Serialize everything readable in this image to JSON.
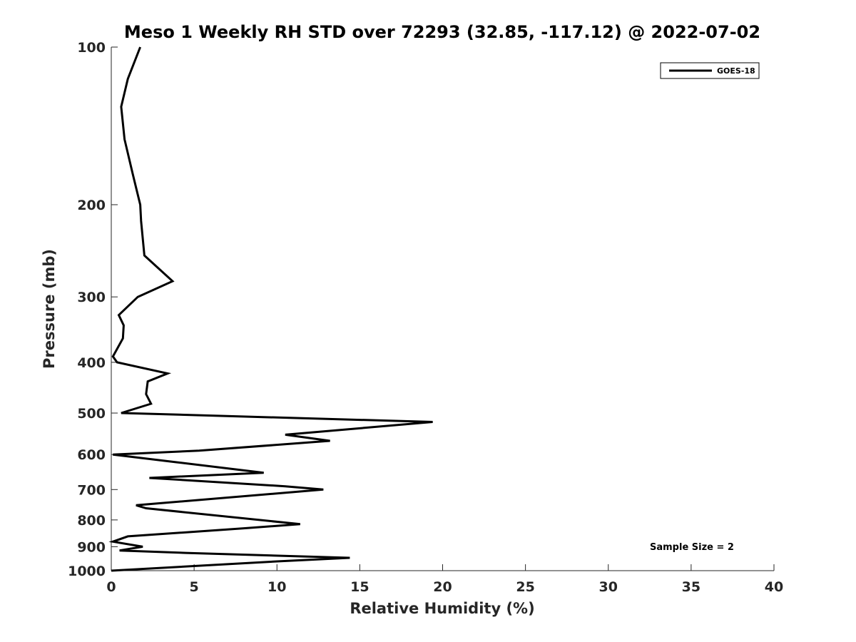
{
  "chart_data": {
    "type": "line",
    "title": "Meso 1 Weekly RH STD over 72293 (32.85, -117.12) @ 2022-07-02",
    "xlabel": "Relative Humidity (%)",
    "ylabel": "Pressure (mb)",
    "xlim": [
      0,
      40
    ],
    "ylim": [
      100,
      1000
    ],
    "y_scale": "log",
    "y_reversed": true,
    "x_ticks": [
      0,
      5,
      10,
      15,
      20,
      25,
      30,
      35,
      40
    ],
    "y_ticks": [
      100,
      200,
      300,
      400,
      500,
      600,
      700,
      800,
      900,
      1000
    ],
    "grid": false,
    "legend_position": "top-right",
    "series": [
      {
        "name": "GOES-18",
        "color": "#000000",
        "points": [
          [
            1.75,
            100
          ],
          [
            1.0,
            115
          ],
          [
            0.6,
            130
          ],
          [
            0.8,
            150
          ],
          [
            1.3,
            175
          ],
          [
            1.75,
            200
          ],
          [
            1.8,
            215
          ],
          [
            2.0,
            250
          ],
          [
            3.7,
            280
          ],
          [
            1.6,
            300
          ],
          [
            0.45,
            325
          ],
          [
            0.75,
            340
          ],
          [
            0.7,
            360
          ],
          [
            0.1,
            390
          ],
          [
            0.35,
            400
          ],
          [
            3.4,
            420
          ],
          [
            2.2,
            435
          ],
          [
            2.1,
            460
          ],
          [
            2.4,
            480
          ],
          [
            0.6,
            500
          ],
          [
            19.4,
            520
          ],
          [
            10.5,
            550
          ],
          [
            13.2,
            565
          ],
          [
            5.3,
            590
          ],
          [
            0.1,
            600
          ],
          [
            3.8,
            620
          ],
          [
            9.2,
            650
          ],
          [
            2.3,
            665
          ],
          [
            10.5,
            690
          ],
          [
            12.8,
            700
          ],
          [
            1.5,
            750
          ],
          [
            2.1,
            760
          ],
          [
            11.4,
            815
          ],
          [
            8.0,
            830
          ],
          [
            1.0,
            860
          ],
          [
            0.1,
            880
          ],
          [
            1.9,
            900
          ],
          [
            0.5,
            915
          ],
          [
            4.5,
            925
          ],
          [
            14.4,
            945
          ],
          [
            10.0,
            960
          ],
          [
            0.0,
            1000
          ]
        ]
      }
    ],
    "annotation": "Sample Size = 2"
  }
}
